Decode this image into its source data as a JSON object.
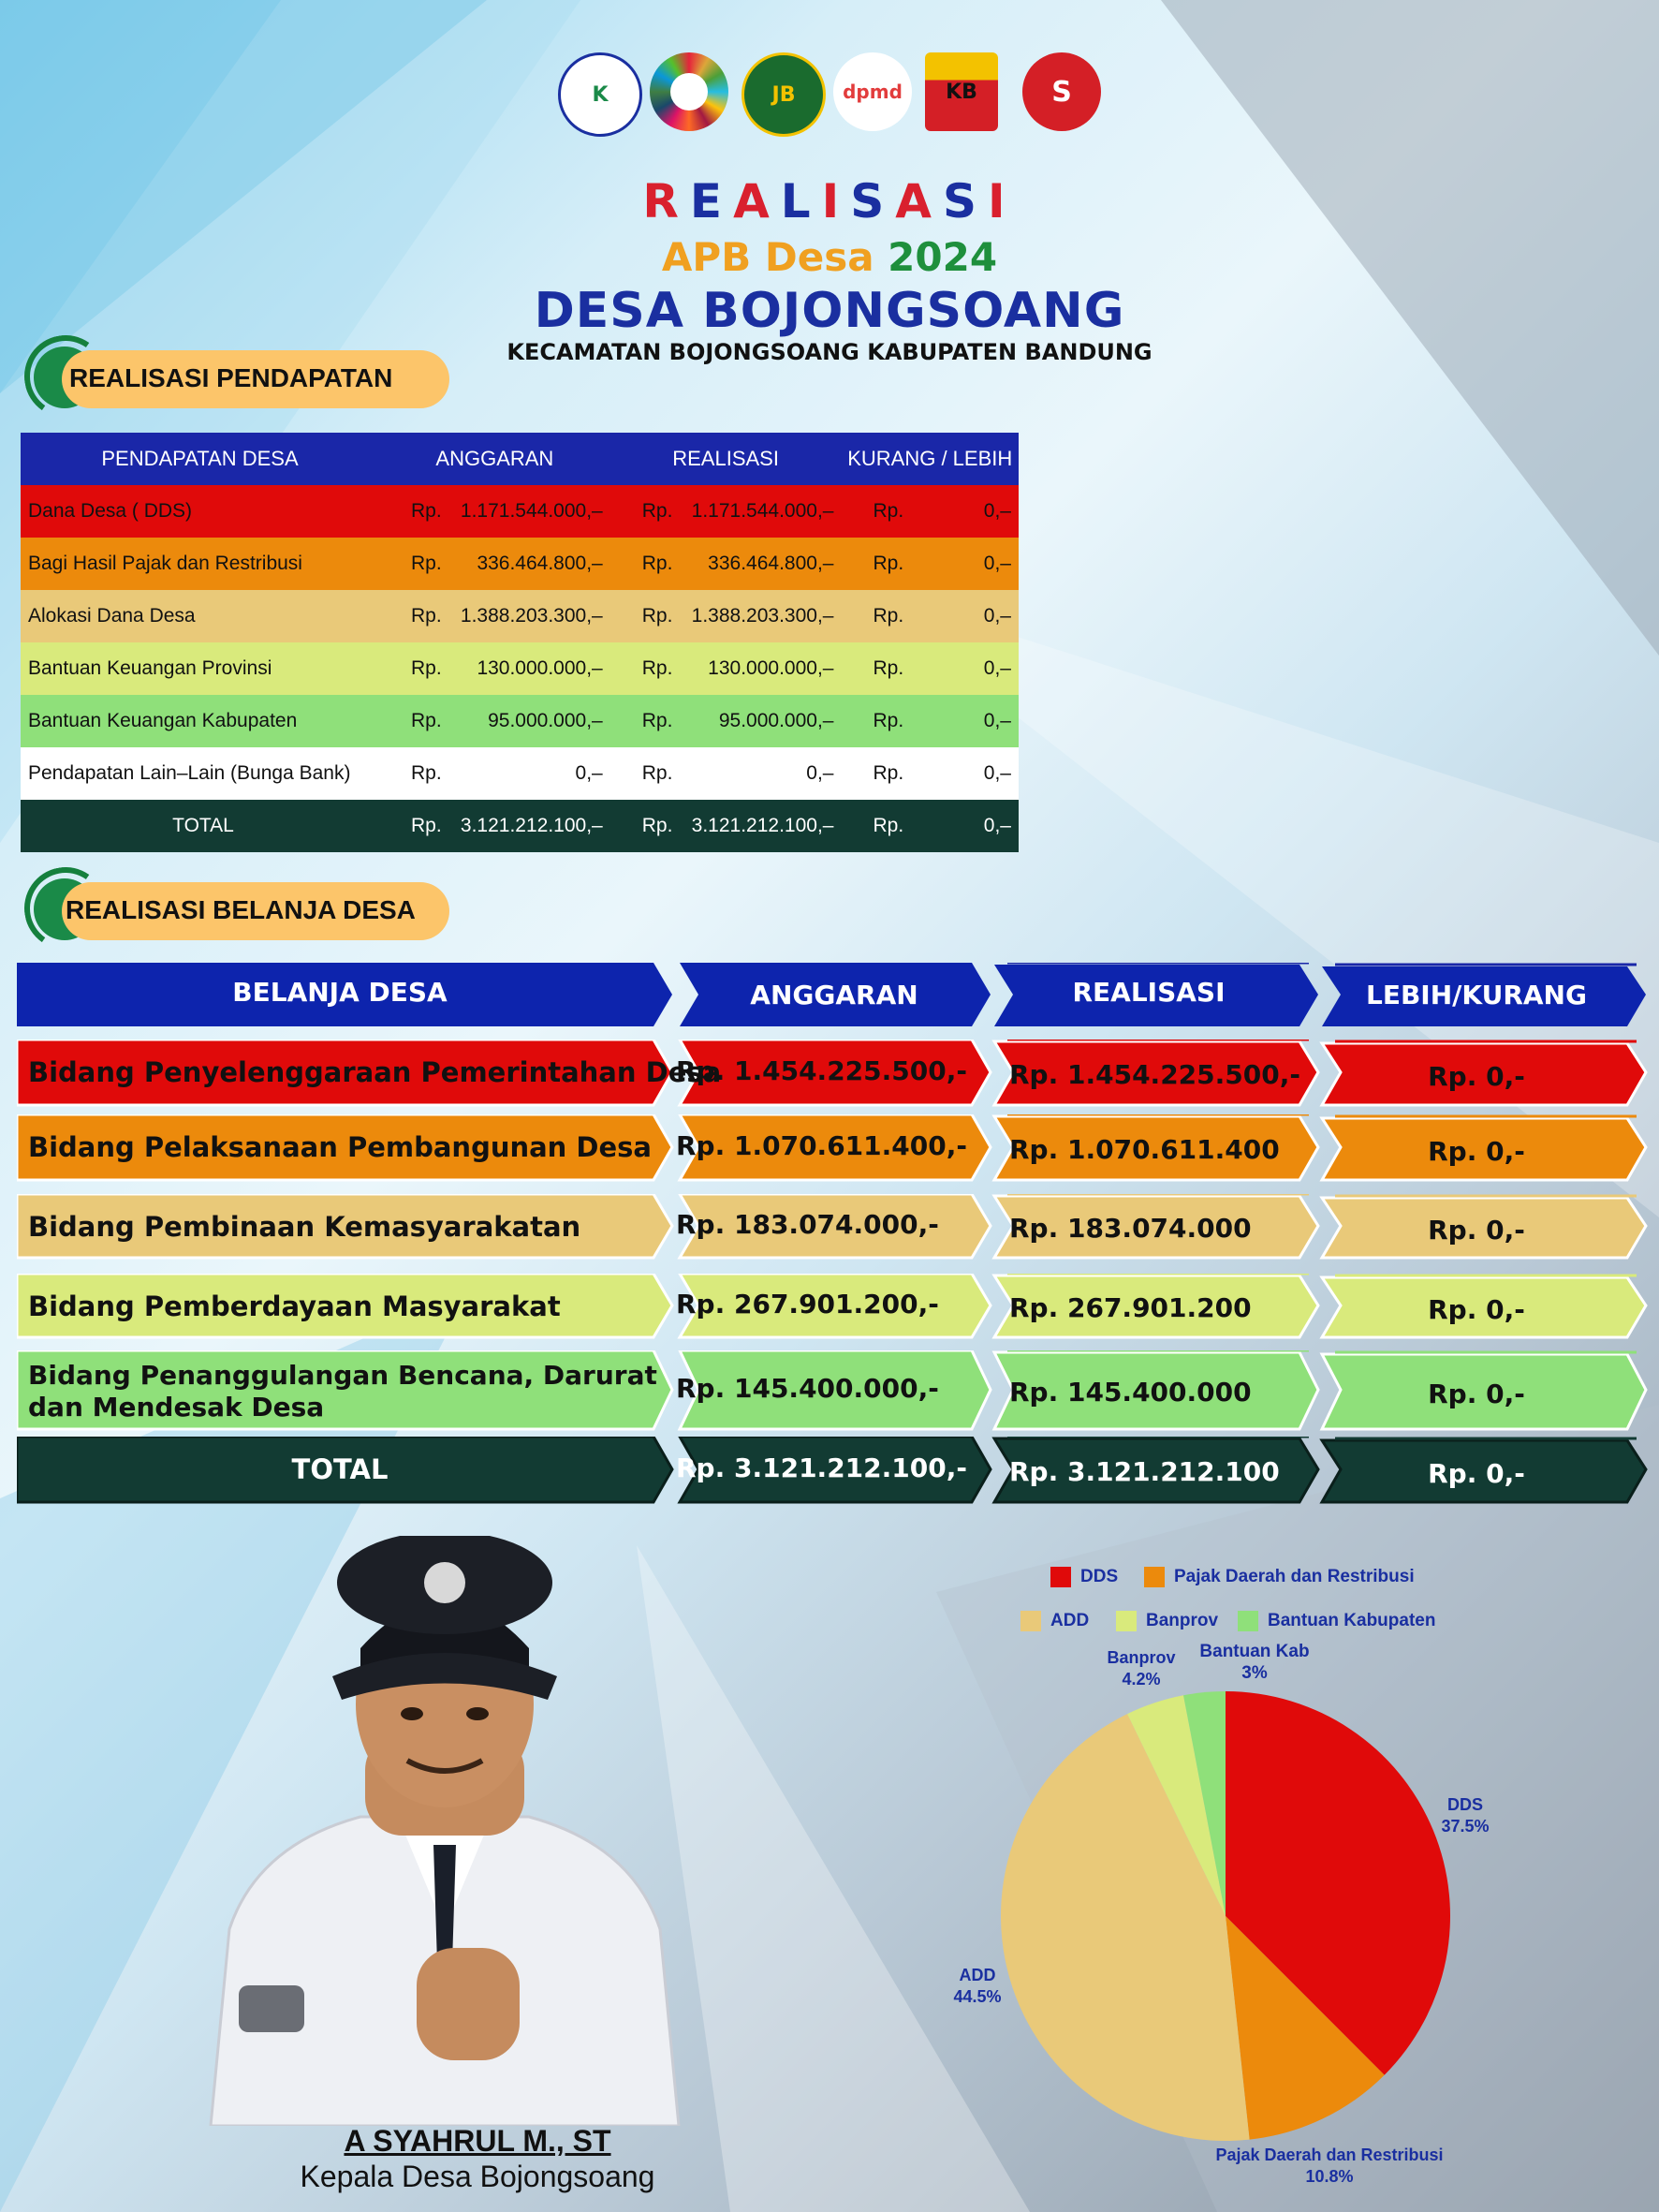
{
  "header": {
    "logos": [
      "kemendes-logo",
      "sdgs-logo",
      "jabar-logo",
      "dpmd-logo",
      "kabupaten-bandung-logo",
      "bojongsoang-logo"
    ],
    "title_letters": [
      "R",
      "E",
      "A",
      "L",
      "I",
      "S",
      "A",
      "S",
      "I"
    ],
    "title_colors": [
      "#d9202e",
      "#1a2fa0",
      "#d9202e",
      "#1a2fa0",
      "#d9202e",
      "#1a2fa0",
      "#d9202e",
      "#1a2fa0",
      "#d9202e"
    ],
    "apb": "APB Desa",
    "year": "2024",
    "desa": "DESA BOJONGSOANG",
    "kecamatan": "KECAMATAN BOJONGSOANG KABUPATEN BANDUNG"
  },
  "pendapatan": {
    "section_title": "REALISASI PENDAPATAN",
    "headers": [
      "PENDAPATAN DESA",
      "ANGGARAN",
      "REALISASI",
      "KURANG / LEBIH"
    ],
    "rows": [
      {
        "label": "Dana Desa ( DDS)",
        "anggaran": "1.171.544.000,–",
        "realisasi": "1.171.544.000,–",
        "selisih": "0,–",
        "color": "#e00a0a"
      },
      {
        "label": "Bagi Hasil Pajak dan Restribusi",
        "anggaran": "336.464.800,–",
        "realisasi": "336.464.800,–",
        "selisih": "0,–",
        "color": "#ec8a0c"
      },
      {
        "label": "Alokasi Dana Desa",
        "anggaran": "1.388.203.300,–",
        "realisasi": "1.388.203.300,–",
        "selisih": "0,–",
        "color": "#e9c979"
      },
      {
        "label": "Bantuan Keuangan Provinsi",
        "anggaran": "130.000.000,–",
        "realisasi": "130.000.000,–",
        "selisih": "0,–",
        "color": "#d9ea7c"
      },
      {
        "label": "Bantuan Keuangan Kabupaten",
        "anggaran": "95.000.000,–",
        "realisasi": "95.000.000,–",
        "selisih": "0,–",
        "color": "#8fe07a"
      },
      {
        "label": "Pendapatan Lain–Lain (Bunga Bank)",
        "anggaran": "0,–",
        "realisasi": "0,–",
        "selisih": "0,–",
        "color": "#ffffff"
      }
    ],
    "total": {
      "label": "TOTAL",
      "anggaran": "3.121.212.100,–",
      "realisasi": "3.121.212.100,–",
      "selisih": "0,–"
    },
    "rp": "Rp."
  },
  "belanja": {
    "section_title": "REALISASI BELANJA DESA",
    "headers": [
      "BELANJA DESA",
      "ANGGARAN",
      "REALISASI",
      "LEBIH/KURANG"
    ],
    "rows": [
      {
        "label": "Bidang Penyelenggaraan Pemerintahan Desa",
        "label2": "",
        "anggaran": "Rp. 1.454.225.500,-",
        "realisasi": "Rp. 1.454.225.500,-",
        "selisih": "Rp.  0,-",
        "color": "#e00a0a",
        "text": "#111111"
      },
      {
        "label": "Bidang Pelaksanaan Pembangunan Desa",
        "label2": "",
        "anggaran": "Rp. 1.070.611.400,-",
        "realisasi": "Rp. 1.070.611.400",
        "selisih": "Rp.  0,-",
        "color": "#ec8a0c",
        "text": "#111111"
      },
      {
        "label": "Bidang Pembinaan Kemasyarakatan",
        "label2": "",
        "anggaran": "Rp. 183.074.000,-",
        "realisasi": "Rp. 183.074.000",
        "selisih": "Rp.  0,-",
        "color": "#e9c979",
        "text": "#111111"
      },
      {
        "label": "Bidang Pemberdayaan Masyarakat",
        "label2": "",
        "anggaran": "Rp. 267.901.200,-",
        "realisasi": "Rp. 267.901.200",
        "selisih": "Rp.  0,-",
        "color": "#d9ea7c",
        "text": "#111111"
      },
      {
        "label": "Bidang Penanggulangan Bencana, Darurat",
        "label2": "dan Mendesak Desa",
        "anggaran": "Rp. 145.400.000,-",
        "realisasi": "Rp. 145.400.000",
        "selisih": "Rp.  0,-",
        "color": "#8fe07a",
        "text": "#111111"
      },
      {
        "label": "TOTAL",
        "label2": "",
        "anggaran": "Rp. 3.121.212.100,-",
        "realisasi": "Rp. 3.121.212.100",
        "selisih": "Rp.  0,-",
        "color": "#123b33",
        "text": "#ffffff"
      }
    ]
  },
  "person": {
    "name": "A SYAHRUL M., ST",
    "role": "Kepala Desa Bojongsoang"
  },
  "chart_data": {
    "type": "pie",
    "title": "",
    "legend": [
      "DDS",
      "Pajak Daerah dan Restribusi",
      "ADD",
      "Banprov",
      "Bantuan Kabupaten"
    ],
    "legend_position": "top",
    "slices": [
      {
        "name": "DDS",
        "label": "DDS",
        "value": 37.5,
        "pct_text": "37.5%",
        "color": "#e00a0a"
      },
      {
        "name": "Pajak Daerah dan Restribusi",
        "label": "Pajak Daerah dan Restribusi",
        "value": 10.8,
        "pct_text": "10.8%",
        "color": "#ec8a0c"
      },
      {
        "name": "ADD",
        "label": "ADD",
        "value": 44.5,
        "pct_text": "44.5%",
        "color": "#e9c979"
      },
      {
        "name": "Banprov",
        "label": "Banprov",
        "value": 4.2,
        "pct_text": "4.2%",
        "color": "#d9ea7c"
      },
      {
        "name": "Bantuan Kabupaten",
        "label": "Bantuan Kab",
        "value": 3,
        "pct_text": "3%",
        "color": "#8fe07a"
      }
    ]
  }
}
